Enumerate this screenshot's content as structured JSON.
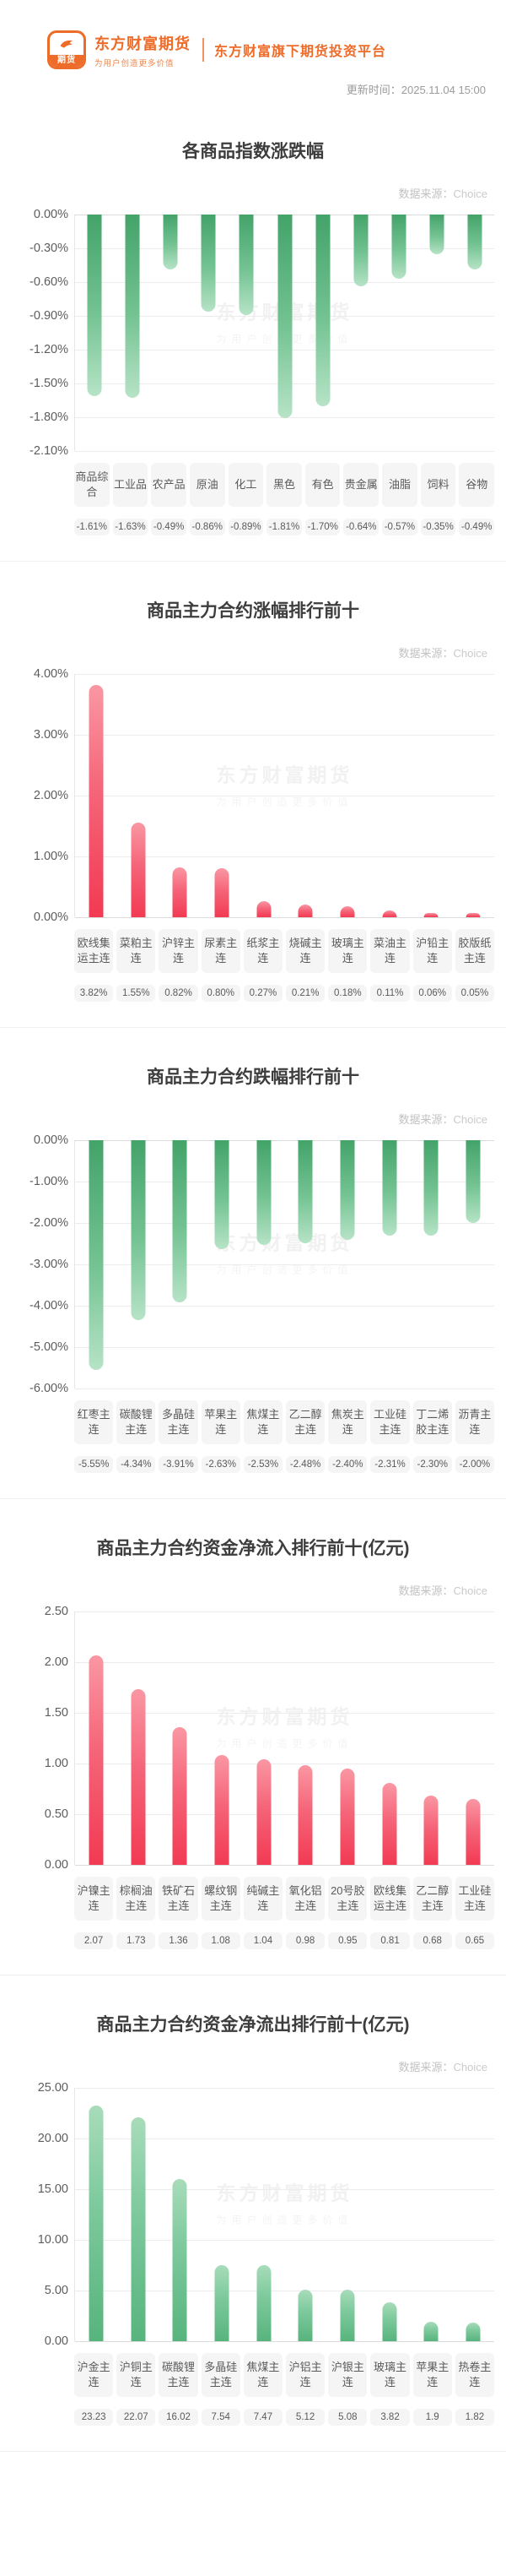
{
  "header": {
    "logo_icon_text": "期货",
    "brand_name": "东方财富期货",
    "brand_slogan": "为用户创造更多价值",
    "platform_tagline": "东方财富旗下期货投资平台",
    "update_time": "更新时间：2025.11.04 15:00"
  },
  "source": {
    "label": "数据来源：",
    "value": "Choice"
  },
  "watermark": {
    "line1": "东方财富期货",
    "line2": "为用户创造更多价值"
  },
  "colors": {
    "brand_orange": "#ee6c2a",
    "bar_red": "#f23a53",
    "bar_green": "#4aa96d",
    "chip_bg": "#f5f5f6",
    "title_gray": "#3d3d3d",
    "source_gray": "#c8c8c8"
  },
  "chart_data": [
    {
      "type": "bar",
      "title": "各商品指数涨跌幅",
      "direction": "down",
      "color": "green",
      "ymin": -2.1,
      "ymax": 0,
      "yticks": [
        "0.00%",
        "-0.30%",
        "-0.60%",
        "-0.90%",
        "-1.20%",
        "-1.50%",
        "-1.80%",
        "-2.10%"
      ],
      "categories": [
        "商品综合",
        "工业品",
        "农产品",
        "原油",
        "化工",
        "黑色",
        "有色",
        "贵金属",
        "油脂",
        "饲料",
        "谷物"
      ],
      "values": [
        -1.61,
        -1.63,
        -0.49,
        -0.86,
        -0.89,
        -1.81,
        -1.7,
        -0.64,
        -0.57,
        -0.35,
        -0.49
      ],
      "value_labels": [
        "-1.61%",
        "-1.63%",
        "-0.49%",
        "-0.86%",
        "-0.89%",
        "-1.81%",
        "-1.70%",
        "-0.64%",
        "-0.57%",
        "-0.35%",
        "-0.49%"
      ]
    },
    {
      "type": "bar",
      "title": "商品主力合约涨幅排行前十",
      "direction": "up",
      "color": "red",
      "ymin": 0,
      "ymax": 4.0,
      "yticks": [
        "4.00%",
        "3.00%",
        "2.00%",
        "1.00%",
        "0.00%"
      ],
      "categories": [
        "欧线集运主连",
        "菜粕主连",
        "沪锌主连",
        "尿素主连",
        "纸浆主连",
        "烧碱主连",
        "玻璃主连",
        "菜油主连",
        "沪铅主连",
        "胶版纸主连"
      ],
      "values": [
        3.82,
        1.55,
        0.82,
        0.8,
        0.27,
        0.21,
        0.18,
        0.11,
        0.06,
        0.05
      ],
      "value_labels": [
        "3.82%",
        "1.55%",
        "0.82%",
        "0.80%",
        "0.27%",
        "0.21%",
        "0.18%",
        "0.11%",
        "0.06%",
        "0.05%"
      ]
    },
    {
      "type": "bar",
      "title": "商品主力合约跌幅排行前十",
      "direction": "down",
      "color": "green",
      "ymin": -6.0,
      "ymax": 0,
      "yticks": [
        "0.00%",
        "-1.00%",
        "-2.00%",
        "-3.00%",
        "-4.00%",
        "-5.00%",
        "-6.00%"
      ],
      "categories": [
        "红枣主连",
        "碳酸锂主连",
        "多晶硅主连",
        "苹果主连",
        "焦煤主连",
        "乙二醇主连",
        "焦炭主连",
        "工业硅主连",
        "丁二烯胶主连",
        "沥青主连"
      ],
      "values": [
        -5.55,
        -4.34,
        -3.91,
        -2.63,
        -2.53,
        -2.48,
        -2.4,
        -2.31,
        -2.3,
        -2.0
      ],
      "value_labels": [
        "-5.55%",
        "-4.34%",
        "-3.91%",
        "-2.63%",
        "-2.53%",
        "-2.48%",
        "-2.40%",
        "-2.31%",
        "-2.30%",
        "-2.00%"
      ]
    },
    {
      "type": "bar",
      "title": "商品主力合约资金净流入排行前十(亿元)",
      "direction": "up",
      "color": "red",
      "ymin": 0,
      "ymax": 2.5,
      "yticks": [
        "2.50",
        "2.00",
        "1.50",
        "1.00",
        "0.50",
        "0.00"
      ],
      "categories": [
        "沪镍主连",
        "棕榈油主连",
        "铁矿石主连",
        "螺纹钢主连",
        "纯碱主连",
        "氧化铝主连",
        "20号胶主连",
        "欧线集运主连",
        "乙二醇主连",
        "工业硅主连"
      ],
      "values": [
        2.07,
        1.73,
        1.36,
        1.08,
        1.04,
        0.98,
        0.95,
        0.81,
        0.68,
        0.65
      ],
      "value_labels": [
        "2.07",
        "1.73",
        "1.36",
        "1.08",
        "1.04",
        "0.98",
        "0.95",
        "0.81",
        "0.68",
        "0.65"
      ]
    },
    {
      "type": "bar",
      "title": "商品主力合约资金净流出排行前十(亿元)",
      "direction": "up",
      "color": "green",
      "ymin": 0,
      "ymax": 25.0,
      "yticks": [
        "25.00",
        "20.00",
        "15.00",
        "10.00",
        "5.00",
        "0.00"
      ],
      "categories": [
        "沪金主连",
        "沪铜主连",
        "碳酸锂主连",
        "多晶硅主连",
        "焦煤主连",
        "沪铝主连",
        "沪银主连",
        "玻璃主连",
        "苹果主连",
        "热卷主连"
      ],
      "values": [
        23.23,
        22.07,
        16.02,
        7.54,
        7.47,
        5.12,
        5.08,
        3.82,
        1.9,
        1.82
      ],
      "value_labels": [
        "23.23",
        "22.07",
        "16.02",
        "7.54",
        "7.47",
        "5.12",
        "5.08",
        "3.82",
        "1.9",
        "1.82"
      ]
    }
  ]
}
